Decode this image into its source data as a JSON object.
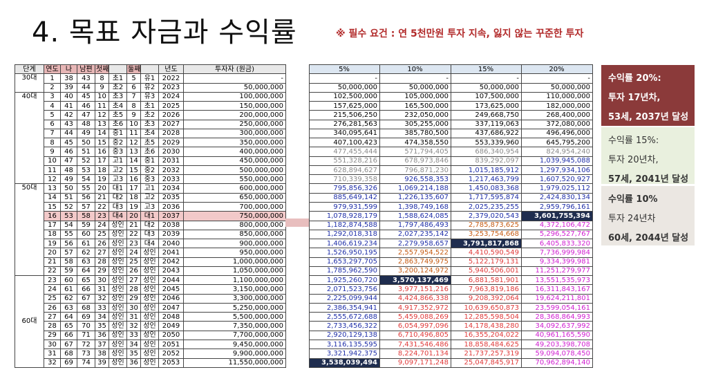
{
  "title": "4. 목표 자금과 수익률",
  "requirement": "※ 필수 요건 : 연 5천만원 투자 지속, 잃지 않는 꾸준한 투자",
  "left_table": {
    "headers": [
      "단계",
      "연도",
      "나",
      "남편",
      "첫째",
      "",
      "둘째",
      "",
      "년도",
      "투자자 (원금)"
    ],
    "rows": [
      [
        "1",
        "38",
        "43",
        "8",
        "초1",
        "5",
        "유1",
        "2022",
        "-"
      ],
      [
        "2",
        "39",
        "44",
        "9",
        "초2",
        "6",
        "유2",
        "2023",
        "50,000,000"
      ],
      [
        "3",
        "40",
        "45",
        "10",
        "초3",
        "7",
        "유3",
        "2024",
        "100,000,000"
      ],
      [
        "4",
        "41",
        "46",
        "11",
        "초4",
        "8",
        "초1",
        "2025",
        "150,000,000"
      ],
      [
        "5",
        "42",
        "47",
        "12",
        "초5",
        "9",
        "초2",
        "2026",
        "200,000,000"
      ],
      [
        "6",
        "43",
        "48",
        "13",
        "초6",
        "10",
        "초3",
        "2027",
        "250,000,000"
      ],
      [
        "7",
        "44",
        "49",
        "14",
        "중1",
        "11",
        "초4",
        "2028",
        "300,000,000"
      ],
      [
        "8",
        "45",
        "50",
        "15",
        "중2",
        "12",
        "초5",
        "2029",
        "350,000,000"
      ],
      [
        "9",
        "46",
        "51",
        "16",
        "중3",
        "13",
        "초6",
        "2030",
        "400,000,000"
      ],
      [
        "10",
        "47",
        "52",
        "17",
        "고1",
        "14",
        "중1",
        "2031",
        "450,000,000"
      ],
      [
        "11",
        "48",
        "53",
        "18",
        "고2",
        "15",
        "중2",
        "2032",
        "500,000,000"
      ],
      [
        "12",
        "49",
        "54",
        "19",
        "고3",
        "16",
        "중3",
        "2033",
        "550,000,000"
      ],
      [
        "13",
        "50",
        "55",
        "20",
        "대1",
        "17",
        "고1",
        "2034",
        "600,000,000"
      ],
      [
        "14",
        "51",
        "56",
        "21",
        "대2",
        "18",
        "고2",
        "2035",
        "650,000,000"
      ],
      [
        "15",
        "52",
        "57",
        "22",
        "대3",
        "19",
        "고3",
        "2036",
        "700,000,000"
      ],
      [
        "16",
        "53",
        "58",
        "23",
        "대4",
        "20",
        "대1",
        "2037",
        "750,000,000"
      ],
      [
        "17",
        "54",
        "59",
        "24",
        "성인",
        "21",
        "대2",
        "2038",
        "800,000,000"
      ],
      [
        "18",
        "55",
        "60",
        "25",
        "성인",
        "22",
        "대3",
        "2039",
        "850,000,000"
      ],
      [
        "19",
        "56",
        "61",
        "26",
        "성인",
        "23",
        "대4",
        "2040",
        "900,000,000"
      ],
      [
        "20",
        "57",
        "62",
        "27",
        "성인",
        "24",
        "성인",
        "2041",
        "950,000,000"
      ],
      [
        "21",
        "58",
        "63",
        "28",
        "성인",
        "25",
        "성인",
        "2042",
        "1,000,000,000"
      ],
      [
        "22",
        "59",
        "64",
        "29",
        "성인",
        "26",
        "성인",
        "2043",
        "1,050,000,000"
      ],
      [
        "23",
        "60",
        "65",
        "30",
        "성인",
        "27",
        "성인",
        "2044",
        "1,100,000,000"
      ],
      [
        "24",
        "61",
        "66",
        "31",
        "성인",
        "28",
        "성인",
        "2045",
        "3,150,000,000"
      ],
      [
        "25",
        "62",
        "67",
        "32",
        "성인",
        "29",
        "성인",
        "2046",
        "3,300,000,000"
      ],
      [
        "26",
        "63",
        "68",
        "33",
        "성인",
        "30",
        "성인",
        "2047",
        "5,250,000,000"
      ],
      [
        "27",
        "64",
        "69",
        "34",
        "성인",
        "31",
        "성인",
        "2048",
        "5,500,000,000"
      ],
      [
        "28",
        "65",
        "70",
        "35",
        "성인",
        "32",
        "성인",
        "2049",
        "7,350,000,000"
      ],
      [
        "29",
        "66",
        "71",
        "36",
        "성인",
        "33",
        "성인",
        "2050",
        "7,700,000,000"
      ],
      [
        "30",
        "67",
        "72",
        "37",
        "성인",
        "34",
        "성인",
        "2051",
        "9,450,000,000"
      ],
      [
        "31",
        "68",
        "73",
        "38",
        "성인",
        "35",
        "성인",
        "2052",
        "9,900,000,000"
      ],
      [
        "32",
        "69",
        "74",
        "39",
        "성인",
        "36",
        "성인",
        "2053",
        "11,550,000,000"
      ]
    ],
    "stages": [
      {
        "label": "30대",
        "rows": 2
      },
      {
        "label": "40대",
        "rows": 10
      },
      {
        "label": "50대",
        "rows": 10
      },
      {
        "label": "60대",
        "rows": 10
      }
    ]
  },
  "right_table": {
    "headers": [
      "5%",
      "10%",
      "15%",
      "20%"
    ],
    "rows": [
      [
        "-",
        "-",
        "-",
        "-"
      ],
      [
        "50,000,000",
        "50,000,000",
        "50,000,000",
        "50,000,000"
      ],
      [
        "102,500,000",
        "105,000,000",
        "107,500,000",
        "110,000,000"
      ],
      [
        "157,625,000",
        "165,500,000",
        "173,625,000",
        "182,000,000"
      ],
      [
        "215,506,250",
        "232,050,000",
        "249,668,750",
        "268,400,000"
      ],
      [
        "276,281,563",
        "305,255,000",
        "337,119,063",
        "372,080,000"
      ],
      [
        "340,095,641",
        "385,780,500",
        "437,686,922",
        "496,496,000"
      ],
      [
        "407,100,423",
        "474,358,550",
        "553,339,960",
        "645,795,200"
      ],
      [
        "477,455,444",
        "571,794,405",
        "686,340,954",
        "824,954,240"
      ],
      [
        "551,328,216",
        "678,973,846",
        "839,292,097",
        "1,039,945,088"
      ],
      [
        "628,894,627",
        "796,871,230",
        "1,015,185,912",
        "1,297,934,106"
      ],
      [
        "710,339,358",
        "926,558,353",
        "1,217,463,799",
        "1,607,520,927"
      ],
      [
        "795,856,326",
        "1,069,214,188",
        "1,450,083,368",
        "1,979,025,112"
      ],
      [
        "885,649,142",
        "1,226,135,607",
        "1,717,595,874",
        "2,424,830,134"
      ],
      [
        "979,931,599",
        "1,398,749,168",
        "2,025,235,255",
        "2,959,796,161"
      ],
      [
        "1,078,928,179",
        "1,588,624,085",
        "2,379,020,543",
        "3,601,755,394"
      ],
      [
        "1,182,874,588",
        "1,797,486,493",
        "2,785,873,625",
        "4,372,106,472"
      ],
      [
        "1,292,018,318",
        "2,027,235,142",
        "3,253,754,668",
        "5,296,527,767"
      ],
      [
        "1,406,619,234",
        "2,279,958,657",
        "3,791,817,868",
        "6,405,833,320"
      ],
      [
        "1,526,950,195",
        "2,557,954,522",
        "4,410,590,549",
        "7,736,999,984"
      ],
      [
        "1,653,297,705",
        "2,863,749,975",
        "5,122,179,131",
        "9,334,399,981"
      ],
      [
        "1,785,962,590",
        "3,200,124,972",
        "5,940,506,001",
        "11,251,279,977"
      ],
      [
        "1,925,260,720",
        "3,570,137,469",
        "6,881,581,901",
        "13,551,535,973"
      ],
      [
        "2,071,523,756",
        "3,977,151,216",
        "7,963,819,186",
        "16,311,843,167"
      ],
      [
        "2,225,099,944",
        "4,424,866,338",
        "9,208,392,064",
        "19,624,211,801"
      ],
      [
        "2,386,354,941",
        "4,917,352,972",
        "10,639,650,873",
        "23,599,054,161"
      ],
      [
        "2,555,672,688",
        "5,459,088,269",
        "12,285,598,504",
        "28,368,864,993"
      ],
      [
        "2,733,456,322",
        "6,054,997,096",
        "14,178,438,280",
        "34,092,637,992"
      ],
      [
        "2,920,129,138",
        "6,710,496,805",
        "16,355,204,022",
        "40,961,165,590"
      ],
      [
        "3,116,135,595",
        "7,431,546,486",
        "18,858,484,625",
        "49,203,398,708"
      ],
      [
        "3,321,942,375",
        "8,224,701,134",
        "21,737,257,319",
        "59,094,078,450"
      ],
      [
        "3,538,039,494",
        "9,097,171,248",
        "25,047,845,917",
        "70,962,894,140"
      ]
    ]
  },
  "info_boxes": [
    {
      "line1": "수익률 20%:",
      "line2": "투자 17년차,",
      "line3": "53세, 2037년 달성"
    },
    {
      "line1": "수익률 15%:",
      "line2": "투자 20년차,",
      "line3": "57세, 2041년 달성"
    },
    {
      "line1": "수익률 10%",
      "line2": "투자 24년차",
      "line3": "60세, 2044년 달성"
    }
  ]
}
